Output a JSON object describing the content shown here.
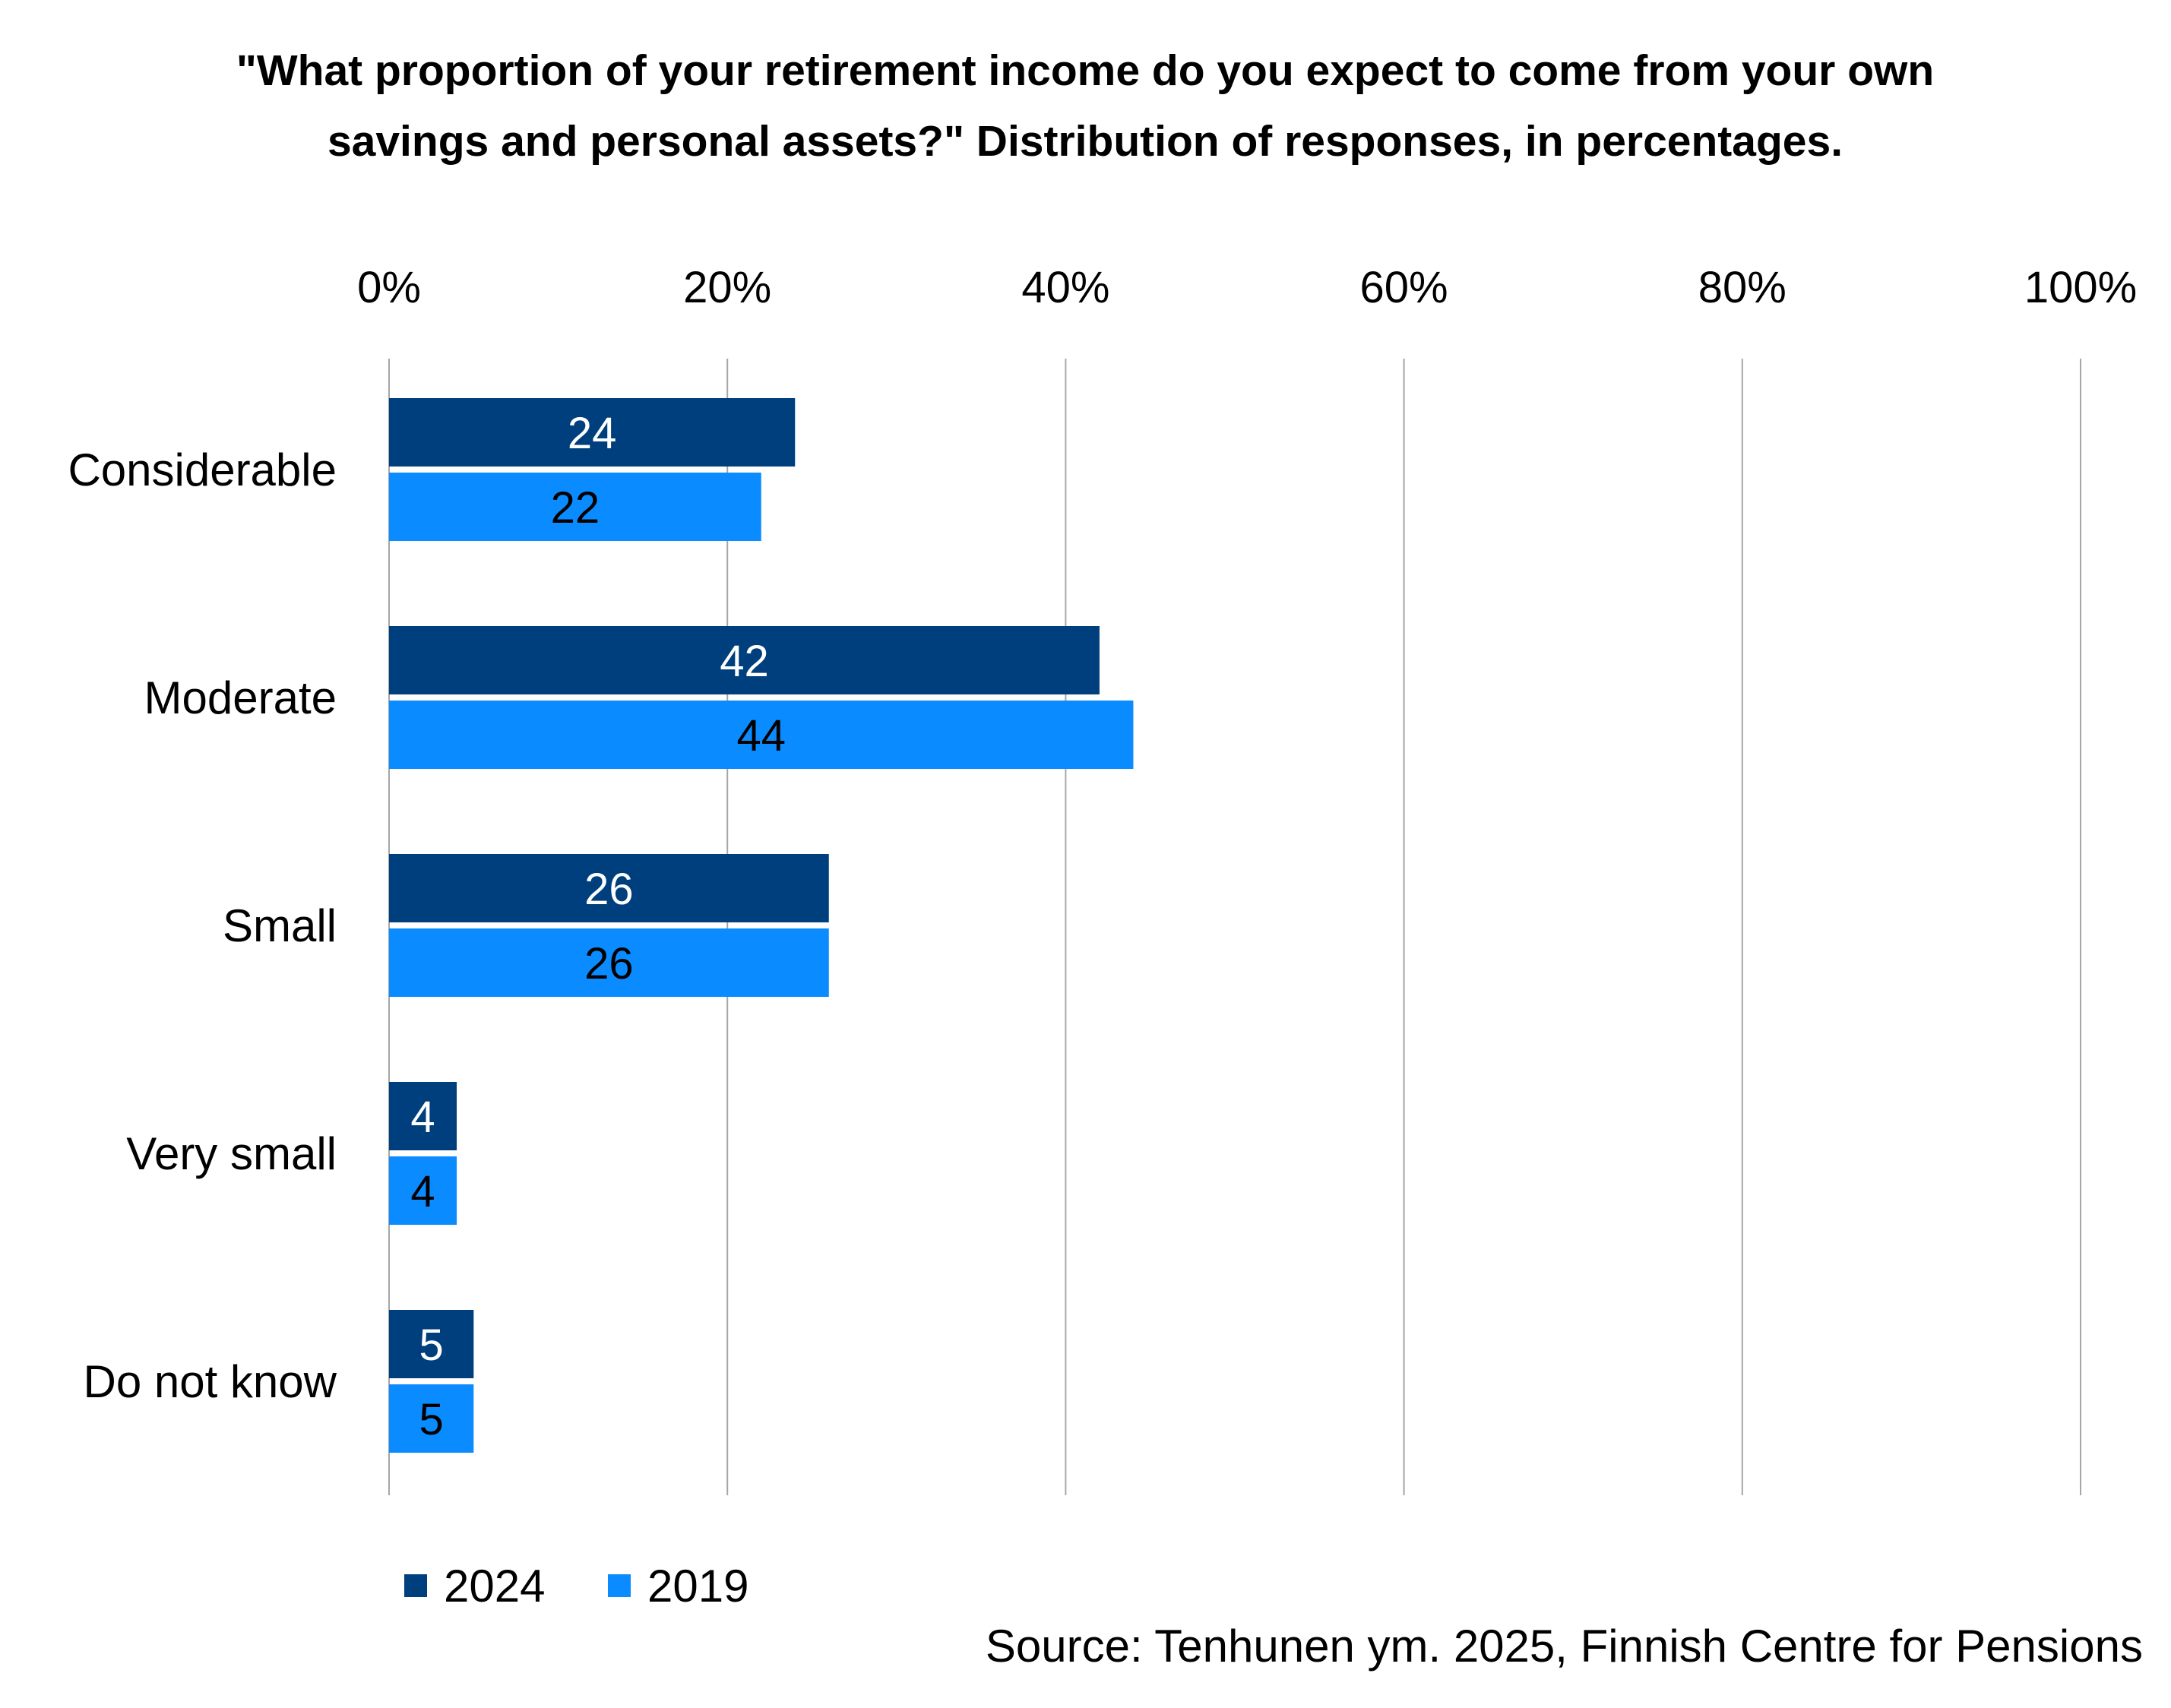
{
  "chart_data": {
    "type": "bar",
    "orientation": "horizontal",
    "title_lines": [
      "\"What proportion of your retirement income do you expect to come from your own",
      "savings and personal assets?\" Distribution of responses, in percentages."
    ],
    "categories": [
      "Considerable",
      "Moderate",
      "Small",
      "Very small",
      "Do not know"
    ],
    "series": [
      {
        "name": "2024",
        "color": "#003f7d",
        "label_color": "#ffffff",
        "values": [
          24,
          42,
          26,
          4,
          5
        ]
      },
      {
        "name": "2019",
        "color": "#0a8bff",
        "label_color": "#000000",
        "values": [
          22,
          44,
          26,
          4,
          5
        ]
      }
    ],
    "xlim": [
      0,
      100
    ],
    "xticks": [
      0,
      20,
      40,
      60,
      80,
      100
    ],
    "xtick_labels": [
      "0%",
      "20%",
      "40%",
      "60%",
      "80%",
      "100%"
    ],
    "x_axis_position": "top",
    "grid": true,
    "legend_position": "bottom-left",
    "source": "Source: Tenhunen ym. 2025, Finnish Centre for Pensions"
  }
}
